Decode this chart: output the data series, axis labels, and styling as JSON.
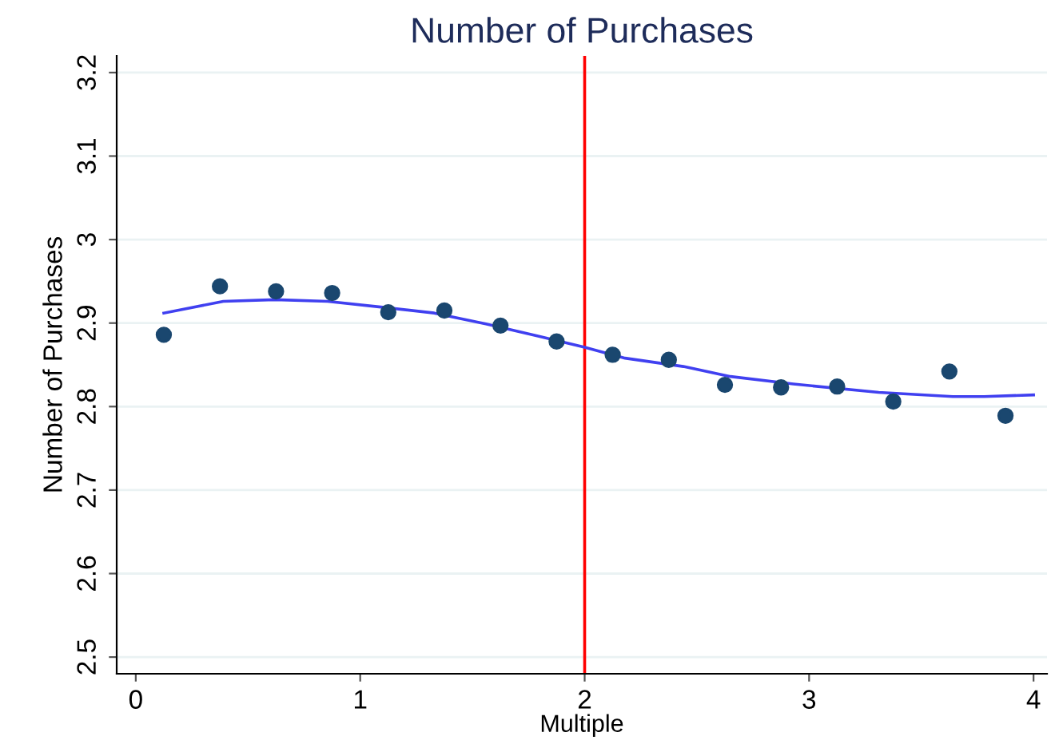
{
  "chart_data": {
    "type": "scatter",
    "title": "Number of Purchases",
    "xlabel": "Multiple",
    "ylabel": "Number of Purchases",
    "xlim": [
      -0.085,
      4.06
    ],
    "ylim": [
      2.48,
      3.22
    ],
    "xticks": [
      0,
      1,
      2,
      3,
      4
    ],
    "yticks": [
      2.5,
      2.6,
      2.7,
      2.8,
      2.9,
      3,
      3.1,
      3.2
    ],
    "grid": "y",
    "legend": false,
    "series": [
      {
        "color": "#1a476f",
        "marker": "circle",
        "x": [
          0.125,
          0.375,
          0.625,
          0.875,
          1.125,
          1.375,
          1.625,
          1.875,
          2.125,
          2.375,
          2.625,
          2.875,
          3.125,
          3.375,
          3.625,
          3.875
        ],
        "values": [
          2.886,
          2.944,
          2.938,
          2.936,
          2.913,
          2.915,
          2.897,
          2.878,
          2.862,
          2.856,
          2.826,
          2.823,
          2.824,
          2.806,
          2.842,
          2.789
        ]
      },
      {
        "type": "line",
        "color": "#4040f0",
        "marker": "none",
        "x": [
          0.125,
          0.39,
          0.62,
          0.855,
          1.1,
          1.33,
          1.56,
          1.8,
          2.0,
          2.18,
          2.44,
          2.65,
          2.93,
          3.31,
          3.64,
          3.78,
          4.0
        ],
        "values": [
          2.912,
          2.926,
          2.928,
          2.926,
          2.919,
          2.912,
          2.899,
          2.884,
          2.871,
          2.858,
          2.848,
          2.836,
          2.827,
          2.817,
          2.812,
          2.812,
          2.814
        ]
      }
    ],
    "ref_lines": [
      {
        "axis": "x",
        "value": 2,
        "color": "#ff0000"
      }
    ]
  }
}
